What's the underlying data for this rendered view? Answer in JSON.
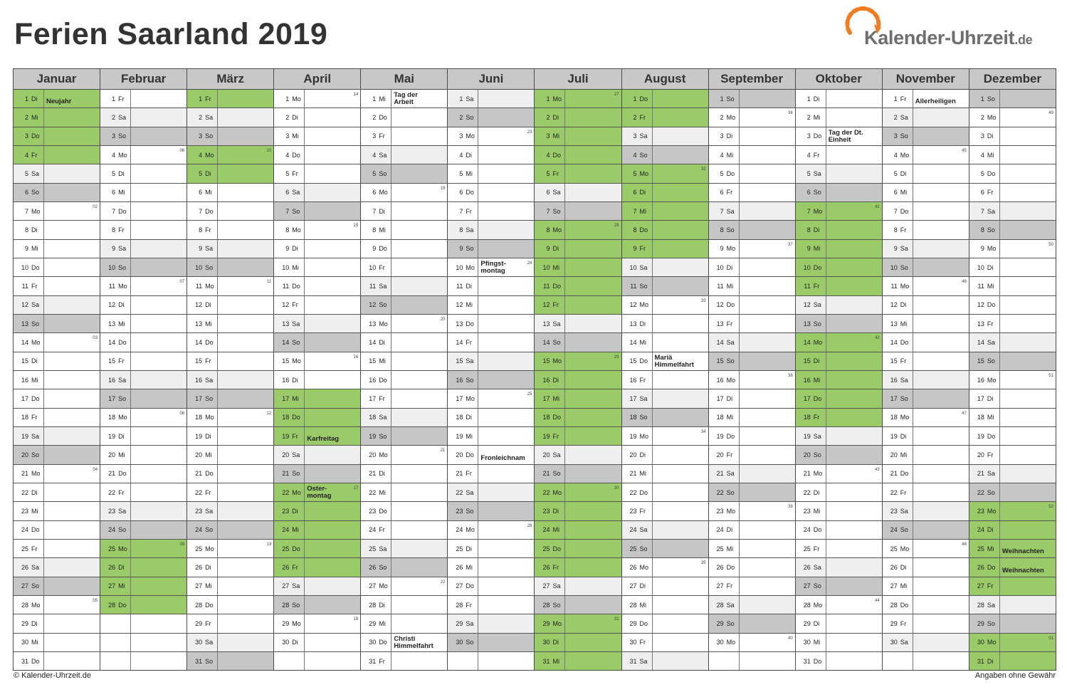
{
  "title": "Ferien Saarland 2019",
  "logo": {
    "text": "Kalender-Uhrzeit",
    "tld": ".de",
    "accent": "#f07d21"
  },
  "footer": {
    "copyright": "© Kalender-Uhrzeit.de",
    "disclaimer": "Angaben ohne Gewähr"
  },
  "colors": {
    "holiday_fill": "#9acb68",
    "saturday_fill": "#efefef",
    "sunday_fill": "#c6c6c6",
    "header_fill": "#c8c8c8"
  },
  "calendar": {
    "year": 2019,
    "weekday_abbrev": [
      "Mo",
      "Di",
      "Mi",
      "Do",
      "Fr",
      "Sa",
      "So"
    ],
    "months": [
      {
        "name": "Januar",
        "days": 31,
        "holiday_days": [
          1,
          2,
          3,
          4
        ],
        "labels": [
          {
            "day": 1,
            "text": "Neujahr"
          }
        ]
      },
      {
        "name": "Februar",
        "days": 28,
        "holiday_days": [
          25,
          26,
          27,
          28
        ],
        "labels": []
      },
      {
        "name": "März",
        "days": 31,
        "holiday_days": [
          1,
          4,
          5
        ],
        "labels": []
      },
      {
        "name": "April",
        "days": 30,
        "holiday_days": [
          17,
          18,
          19,
          22,
          23,
          24,
          25,
          26
        ],
        "labels": [
          {
            "day": 19,
            "text": "Karfreitag"
          },
          {
            "day": 22,
            "text": "Oster-\nmontag"
          }
        ]
      },
      {
        "name": "Mai",
        "days": 31,
        "holiday_days": [],
        "labels": [
          {
            "day": 1,
            "text": "Tag der\nArbeit"
          },
          {
            "day": 30,
            "text": "Christi\nHimmelfahrt"
          }
        ]
      },
      {
        "name": "Juni",
        "days": 30,
        "holiday_days": [],
        "labels": [
          {
            "day": 10,
            "text": "Pfingst-\nmontag"
          },
          {
            "day": 20,
            "text": "Fronleichnam"
          }
        ]
      },
      {
        "name": "Juli",
        "days": 31,
        "holiday_days": [
          1,
          2,
          3,
          4,
          5,
          8,
          9,
          10,
          11,
          12,
          15,
          16,
          17,
          18,
          19,
          22,
          23,
          24,
          25,
          26,
          29,
          30,
          31
        ],
        "labels": []
      },
      {
        "name": "August",
        "days": 31,
        "holiday_days": [
          1,
          2,
          5,
          6,
          7,
          8,
          9
        ],
        "labels": [
          {
            "day": 15,
            "text": "Mariä\nHimmelfahrt"
          }
        ]
      },
      {
        "name": "September",
        "days": 30,
        "holiday_days": [],
        "labels": []
      },
      {
        "name": "Oktober",
        "days": 31,
        "holiday_days": [
          7,
          8,
          9,
          10,
          11,
          14,
          15,
          16,
          17,
          18
        ],
        "labels": [
          {
            "day": 3,
            "text": "Tag der Dt.\nEinheit"
          }
        ]
      },
      {
        "name": "November",
        "days": 30,
        "holiday_days": [],
        "labels": [
          {
            "day": 1,
            "text": "Allerheiligen"
          }
        ]
      },
      {
        "name": "Dezember",
        "days": 31,
        "holiday_days": [
          23,
          24,
          25,
          26,
          27,
          30,
          31
        ],
        "labels": [
          {
            "day": 25,
            "text": "Weihnachten"
          },
          {
            "day": 26,
            "text": "Weihnachten"
          }
        ]
      }
    ]
  }
}
